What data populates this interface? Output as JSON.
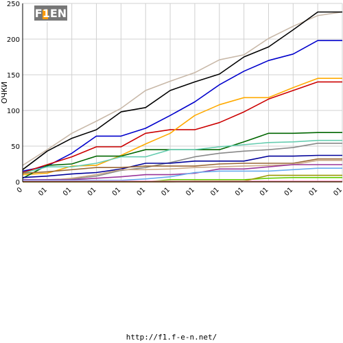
{
  "logo_text": "F1EN",
  "footer_url": "http://f1.f-e-n.net/",
  "chart_data": {
    "type": "line",
    "ylabel": "ОЧКИ",
    "xlabel": "",
    "ylim": [
      0,
      250
    ],
    "yticks": [
      0,
      50,
      100,
      150,
      200,
      250
    ],
    "grid": true,
    "legend": "none",
    "categories": [
      "0",
      "01",
      "01",
      "01",
      "01",
      "01",
      "01",
      "01",
      "01",
      "01",
      "01",
      "01",
      "01",
      "01"
    ],
    "series": [
      {
        "color": "#c8b8a8",
        "values": [
          23,
          45,
          68,
          85,
          103,
          128,
          141,
          153,
          171,
          178,
          201,
          218,
          233,
          238
        ]
      },
      {
        "color": "#000000",
        "values": [
          17,
          43,
          61,
          73,
          98,
          104,
          128,
          140,
          151,
          175,
          189,
          213,
          238,
          238
        ]
      },
      {
        "color": "#0000cc",
        "values": [
          15,
          22,
          40,
          64,
          64,
          75,
          93,
          112,
          136,
          155,
          170,
          179,
          198,
          198
        ]
      },
      {
        "color": "#cc0000",
        "values": [
          13,
          24,
          35,
          49,
          49,
          68,
          73,
          73,
          83,
          98,
          116,
          128,
          140,
          140
        ]
      },
      {
        "color": "#ffaa00",
        "values": [
          10,
          12,
          22,
          23,
          37,
          53,
          68,
          93,
          108,
          118,
          118,
          132,
          145,
          145
        ]
      },
      {
        "color": "#006600",
        "values": [
          5,
          23,
          25,
          36,
          36,
          45,
          45,
          45,
          45,
          56,
          68,
          68,
          69,
          69
        ]
      },
      {
        "color": "#66ccb0",
        "values": [
          12,
          21,
          21,
          26,
          35,
          35,
          45,
          45,
          49,
          52,
          55,
          56,
          58,
          58
        ]
      },
      {
        "color": "#888888",
        "values": [
          2,
          3,
          4,
          8,
          16,
          20,
          27,
          35,
          40,
          43,
          45,
          48,
          54,
          54
        ]
      },
      {
        "color": "#000099",
        "values": [
          6,
          8,
          11,
          13,
          18,
          26,
          26,
          29,
          29,
          29,
          36,
          36,
          37,
          37
        ]
      },
      {
        "color": "#996633",
        "values": [
          12,
          14,
          17,
          20,
          20,
          22,
          22,
          22,
          25,
          26,
          26,
          26,
          32,
          32
        ]
      },
      {
        "color": "#ccaa88",
        "values": [
          0,
          2,
          5,
          10,
          17,
          17,
          18,
          20,
          21,
          22,
          23,
          24,
          30,
          30
        ]
      },
      {
        "color": "#993399",
        "values": [
          3,
          3,
          3,
          5,
          7,
          10,
          10,
          12,
          18,
          18,
          21,
          24,
          24,
          24
        ]
      },
      {
        "color": "#66aaee",
        "values": [
          2,
          2,
          2,
          2,
          2,
          4,
          7,
          13,
          15,
          15,
          15,
          17,
          19,
          19
        ]
      },
      {
        "color": "#66cc00",
        "values": [
          0,
          0,
          0,
          0,
          0,
          0,
          3,
          3,
          3,
          3,
          5,
          6,
          6,
          6
        ]
      },
      {
        "color": "#999900",
        "values": [
          0,
          0,
          0,
          0,
          0,
          0,
          0,
          1,
          1,
          1,
          9,
          9,
          9,
          9
        ]
      },
      {
        "color": "#ff99cc",
        "values": [
          1,
          1,
          1,
          1,
          1,
          1,
          1,
          1,
          1,
          1,
          1,
          1,
          1,
          1
        ]
      },
      {
        "color": "#cc6600",
        "values": [
          0,
          0,
          0,
          0,
          0,
          0,
          0,
          0,
          0,
          0,
          0,
          0,
          0,
          0
        ]
      }
    ]
  }
}
